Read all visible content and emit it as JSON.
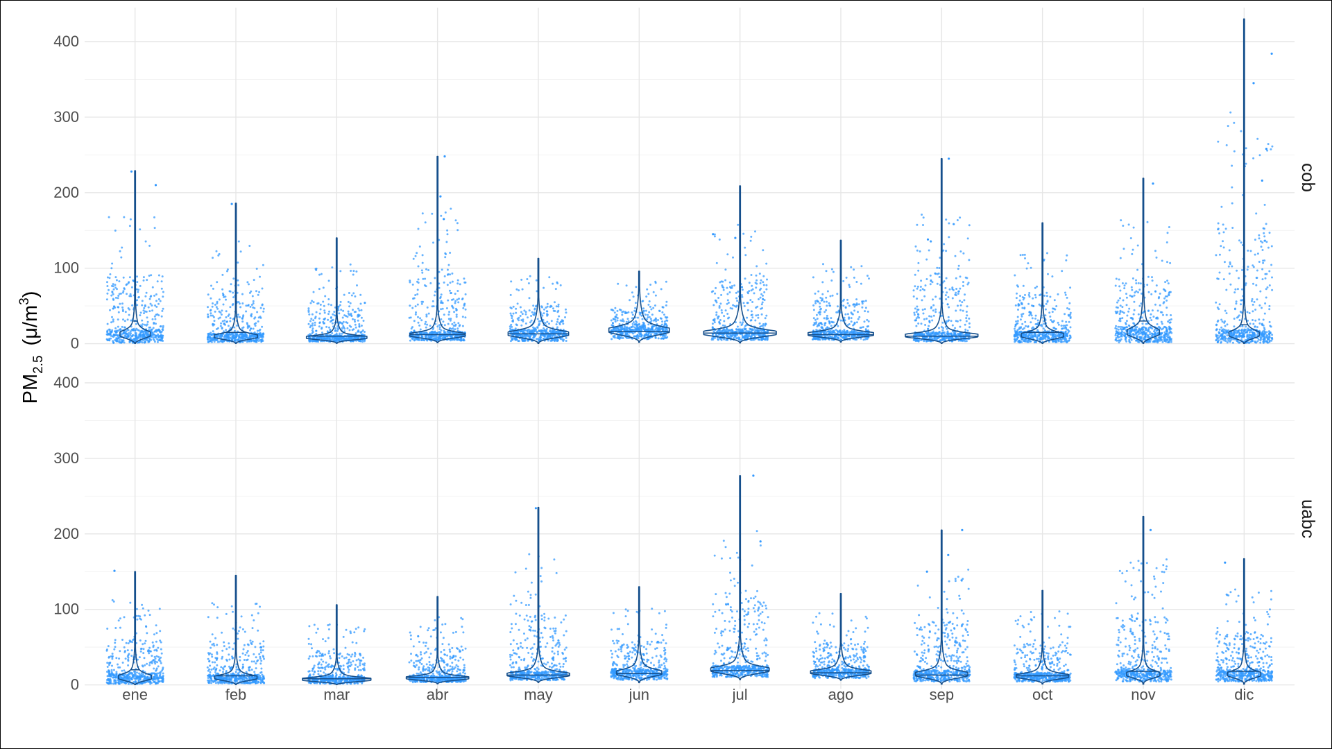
{
  "chart_data": {
    "type": "violin",
    "ylabel": {
      "base": "PM",
      "subscript": "2.5",
      "units_open": "(",
      "mu": "μ",
      "units_mid": "/m",
      "superscript": "3",
      "units_close": ")"
    },
    "categories": [
      "ene",
      "feb",
      "mar",
      "abr",
      "may",
      "jun",
      "jul",
      "ago",
      "sep",
      "oct",
      "nov",
      "dic"
    ],
    "ylim": [
      -5,
      445
    ],
    "yticks": [
      0,
      100,
      200,
      300,
      400
    ],
    "grid": true,
    "point_color": "#3399ff",
    "violin_color": "#154f8c",
    "panels": [
      {
        "label": "cob",
        "months": [
          {
            "max": 229,
            "mode": 10,
            "median": 30,
            "spread": 6,
            "width": 0.3
          },
          {
            "max": 186,
            "mode": 8,
            "median": 15,
            "spread": 4,
            "width": 0.43
          },
          {
            "max": 140,
            "mode": 7,
            "median": 10,
            "spread": 3,
            "width": 0.6
          },
          {
            "max": 248,
            "mode": 10,
            "median": 12,
            "spread": 4,
            "width": 0.55
          },
          {
            "max": 113,
            "mode": 11,
            "median": 13,
            "spread": 5,
            "width": 0.6
          },
          {
            "max": 96,
            "mode": 15,
            "median": 16,
            "spread": 6,
            "width": 0.6
          },
          {
            "max": 209,
            "mode": 12,
            "median": 14,
            "spread": 5,
            "width": 0.72
          },
          {
            "max": 137,
            "mode": 11,
            "median": 12,
            "spread": 4,
            "width": 0.65
          },
          {
            "max": 245,
            "mode": 9,
            "median": 10,
            "spread": 4,
            "width": 0.72
          },
          {
            "max": 160,
            "mode": 9,
            "median": 15,
            "spread": 5,
            "width": 0.42
          },
          {
            "max": 219,
            "mode": 12,
            "median": 30,
            "spread": 7,
            "width": 0.32
          },
          {
            "max": 430,
            "mode": 10,
            "median": 25,
            "spread": 6,
            "width": 0.3
          }
        ],
        "outliers": [
          [
            0,
            228
          ],
          [
            0,
            210
          ],
          [
            1,
            185
          ],
          [
            3,
            248
          ],
          [
            3,
            195
          ],
          [
            3,
            165
          ],
          [
            6,
            145
          ],
          [
            6,
            140
          ],
          [
            8,
            245
          ],
          [
            8,
            138
          ],
          [
            10,
            212
          ],
          [
            11,
            384
          ],
          [
            11,
            345
          ],
          [
            11,
            258
          ],
          [
            11,
            216
          ]
        ]
      },
      {
        "label": "uabc",
        "months": [
          {
            "max": 150,
            "mode": 8,
            "median": 20,
            "spread": 5,
            "width": 0.33
          },
          {
            "max": 145,
            "mode": 8,
            "median": 12,
            "spread": 4,
            "width": 0.42
          },
          {
            "max": 106,
            "mode": 6,
            "median": 8,
            "spread": 3,
            "width": 0.68
          },
          {
            "max": 117,
            "mode": 8,
            "median": 10,
            "spread": 3,
            "width": 0.62
          },
          {
            "max": 235,
            "mode": 12,
            "median": 13,
            "spread": 4,
            "width": 0.62
          },
          {
            "max": 130,
            "mode": 14,
            "median": 15,
            "spread": 5,
            "width": 0.45
          },
          {
            "max": 277,
            "mode": 18,
            "median": 19,
            "spread": 5,
            "width": 0.58
          },
          {
            "max": 121,
            "mode": 15,
            "median": 16,
            "spread": 4,
            "width": 0.6
          },
          {
            "max": 205,
            "mode": 12,
            "median": 13,
            "spread": 5,
            "width": 0.52
          },
          {
            "max": 125,
            "mode": 10,
            "median": 12,
            "spread": 4,
            "width": 0.52
          },
          {
            "max": 223,
            "mode": 12,
            "median": 18,
            "spread": 5,
            "width": 0.33
          },
          {
            "max": 167,
            "mode": 12,
            "median": 18,
            "spread": 5,
            "width": 0.33
          }
        ],
        "outliers": [
          [
            0,
            151
          ],
          [
            4,
            234
          ],
          [
            6,
            277
          ],
          [
            6,
            190
          ],
          [
            8,
            205
          ],
          [
            8,
            172
          ],
          [
            8,
            150
          ],
          [
            10,
            205
          ],
          [
            11,
            162
          ]
        ]
      }
    ]
  }
}
